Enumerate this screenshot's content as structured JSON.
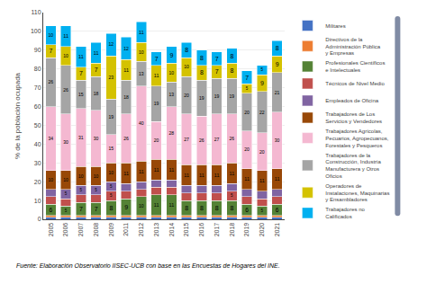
{
  "chart_data": {
    "type": "bar",
    "stacked": true,
    "categories": [
      "2005",
      "2006",
      "2007",
      "2008",
      "2009",
      "2011",
      "2012",
      "2013",
      "2014",
      "2015",
      "2016",
      "2017",
      "2018",
      "2019",
      "2020",
      "2021"
    ],
    "series": [
      {
        "name": "Militares",
        "color": "#4472c4",
        "values": [
          1,
          1,
          1,
          1,
          1,
          1,
          1,
          1,
          1,
          1,
          1,
          1,
          1,
          1,
          1,
          1
        ],
        "value_labels": [
          null,
          null,
          null,
          null,
          null,
          null,
          null,
          null,
          null,
          null,
          null,
          null,
          null,
          null,
          null,
          null
        ]
      },
      {
        "name": "Directivos de la\nAdministración Pública\ny Empresas",
        "color": "#ed7d31",
        "values": [
          1,
          1,
          1,
          1,
          1,
          1,
          1,
          1,
          1,
          1,
          1,
          1,
          1,
          1,
          1,
          1
        ],
        "value_labels": [
          null,
          null,
          null,
          null,
          null,
          null,
          null,
          null,
          null,
          null,
          null,
          null,
          null,
          null,
          null,
          null
        ]
      },
      {
        "name": "Profesionales Científicos\ne Intelectuales",
        "color": "#548235",
        "values": [
          6,
          5,
          7,
          7,
          8,
          9,
          10,
          11,
          11,
          8,
          8,
          8,
          8,
          6,
          5,
          6
        ],
        "value_labels": [
          "6",
          "5",
          "7",
          "7",
          "8",
          "9",
          "10",
          "11",
          "11",
          "8",
          "8",
          "8",
          "8",
          "6",
          "5",
          "6"
        ]
      },
      {
        "name": "Técnicos de Nivel Medio",
        "color": "#c0504d",
        "values": [
          4,
          4,
          4,
          4,
          5,
          4,
          4,
          4,
          4,
          4,
          4,
          4,
          5,
          4,
          4,
          4
        ],
        "value_labels": [
          null,
          null,
          null,
          null,
          "5",
          null,
          null,
          null,
          null,
          null,
          null,
          null,
          "5",
          null,
          null,
          null
        ]
      },
      {
        "name": "Empleados de Oficina",
        "color": "#8064a2",
        "values": [
          4,
          5,
          5,
          5,
          5,
          4,
          4,
          4,
          4,
          4,
          4,
          4,
          4,
          4,
          4,
          4
        ],
        "value_labels": [
          null,
          "5",
          "5",
          "5",
          "5",
          null,
          null,
          null,
          null,
          null,
          null,
          null,
          null,
          null,
          null,
          null
        ]
      },
      {
        "name": "Trabajadores de Los\nServicios y Vendedores",
        "color": "#984807",
        "values": [
          10,
          10,
          10,
          10,
          10,
          11,
          11,
          11,
          11,
          11,
          11,
          11,
          11,
          11,
          11,
          11
        ],
        "value_labels": [
          "10",
          "10",
          "10",
          "10",
          "10",
          "11",
          "11",
          "11",
          "11",
          "11",
          "11",
          "11",
          "11",
          "11",
          "11",
          "11"
        ]
      },
      {
        "name": "Trabajadores Agrícolas,\nPecuarios, Agropecuanos,\nForestales y Pesqueros",
        "color": "#f4b8d1",
        "values": [
          34,
          30,
          31,
          30,
          15,
          26,
          40,
          20,
          28,
          27,
          26,
          27,
          26,
          20,
          20,
          30
        ],
        "value_labels": [
          "34",
          "30",
          "31",
          "30",
          "15",
          "26",
          "40",
          "20",
          "28",
          "27",
          "26",
          "27",
          "26",
          "20",
          "20",
          "30"
        ]
      },
      {
        "name": "Trabajadores de la\nConstrucción, Industria\nManufacturera y Otros\nOficios",
        "color": "#a5a5a5",
        "values": [
          26,
          26,
          15,
          18,
          19,
          18,
          13,
          19,
          13,
          20,
          19,
          19,
          19,
          20,
          22,
          21
        ],
        "value_labels": [
          "26",
          "26",
          "15",
          "18",
          "19",
          "18",
          "13",
          "19",
          "13",
          "20",
          "19",
          "19",
          "19",
          "20",
          "22",
          "21"
        ]
      },
      {
        "name": "Operadores de\nInstalaciones, Maquinarias\ny Ensambladores",
        "color": "#d4c200",
        "values": [
          7,
          10,
          7,
          7,
          23,
          11,
          10,
          11,
          10,
          10,
          8,
          7,
          8,
          5,
          9,
          9
        ],
        "value_labels": [
          "7",
          "10",
          "7",
          "7",
          "23",
          "11",
          "10",
          "11",
          "10",
          "10",
          "8",
          "7",
          "8",
          "5",
          "9",
          "9"
        ]
      },
      {
        "name": "Trabajadores no\nCalificados",
        "color": "#00b0f0",
        "values": [
          10,
          11,
          11,
          11,
          12,
          12,
          11,
          7,
          9,
          8,
          8,
          7,
          8,
          7,
          5,
          8
        ],
        "value_labels": [
          "10",
          "11",
          "11",
          "11",
          "12",
          "12",
          "11",
          "7",
          "9",
          "8",
          "8",
          "7",
          "8",
          "7",
          "5",
          "8"
        ]
      }
    ],
    "ylabel": "% de la población ocupada",
    "ylim": [
      0,
      110
    ],
    "yticks": [
      0,
      10,
      20,
      30,
      40,
      50,
      60,
      70,
      80,
      90,
      100,
      110
    ],
    "grid": true,
    "legend": "right",
    "data_labels": true,
    "annotations": [
      "Fuente: Elaboración Observatorio IISEC-UCB con base en las Encuestas de Hogares del INE."
    ]
  }
}
